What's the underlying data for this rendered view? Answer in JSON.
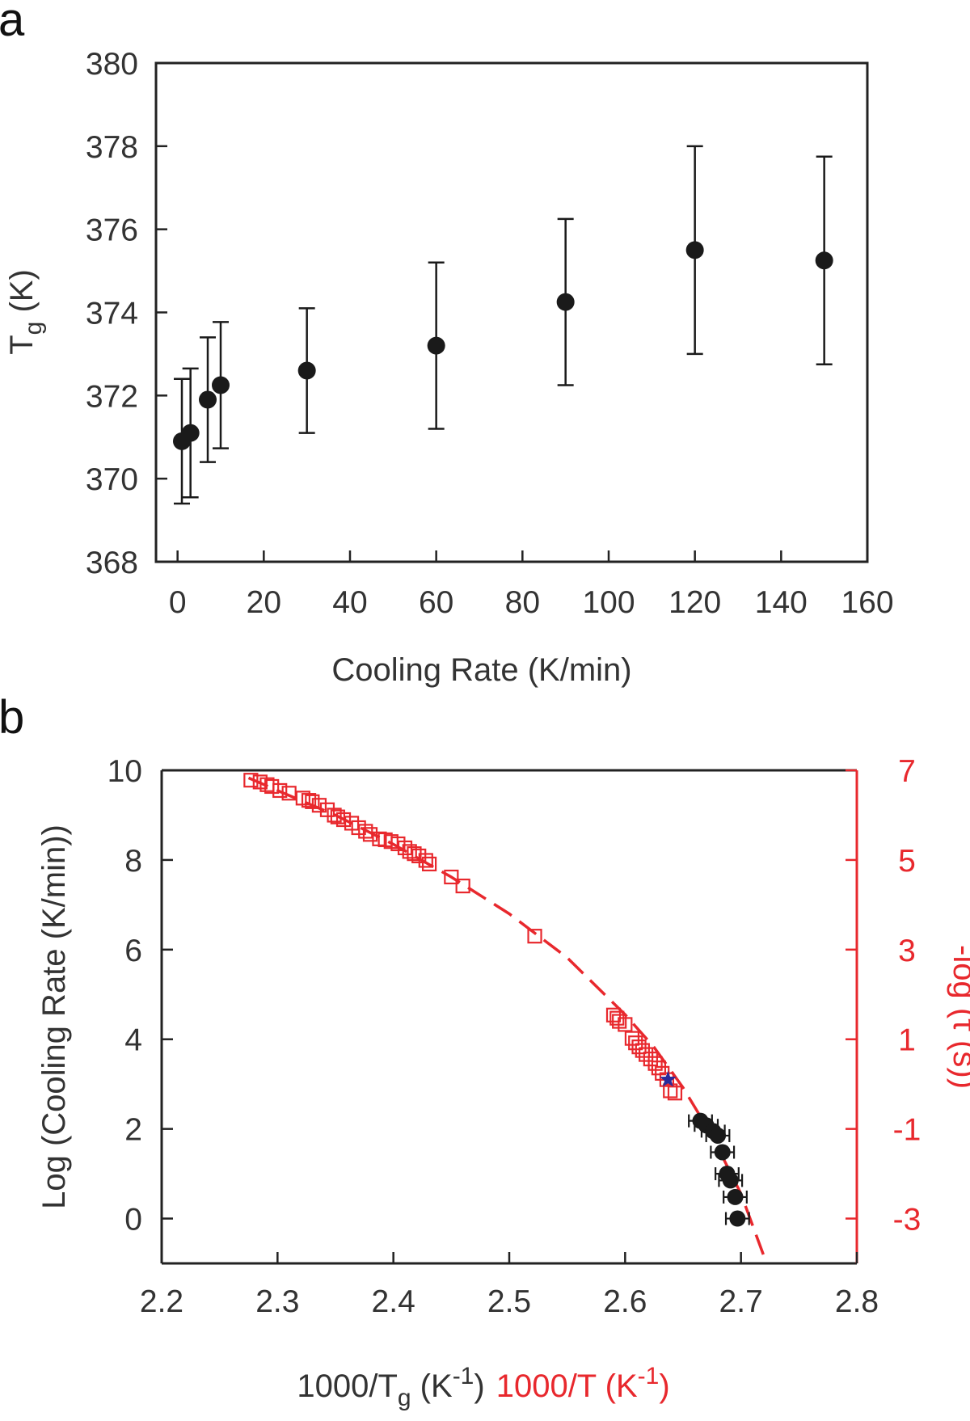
{
  "figure": {
    "panel_letters": [
      "a",
      "b"
    ]
  },
  "chart_data": [
    {
      "panel": "a",
      "type": "scatter",
      "title": "",
      "xlabel": "Cooling Rate (K/min)",
      "ylabel": {
        "main": "T",
        "sub": "g",
        "rest": " (K)"
      },
      "xlim": [
        -5,
        160
      ],
      "ylim": [
        368,
        380
      ],
      "xticks": [
        0,
        20,
        40,
        60,
        80,
        100,
        120,
        140,
        160
      ],
      "yticks": [
        368,
        370,
        372,
        374,
        376,
        378,
        380
      ],
      "grid": false,
      "colors": {
        "marker": "#1a1a1a",
        "axis": "#222222"
      },
      "points": [
        {
          "x": 1,
          "y": 370.9,
          "err": 1.5
        },
        {
          "x": 3,
          "y": 371.1,
          "err": 1.55
        },
        {
          "x": 7,
          "y": 371.9,
          "err": 1.5
        },
        {
          "x": 10,
          "y": 372.25,
          "err": 1.52
        },
        {
          "x": 30,
          "y": 372.6,
          "err": 1.5
        },
        {
          "x": 60,
          "y": 373.2,
          "err": 2.0
        },
        {
          "x": 90,
          "y": 374.25,
          "err": 2.0
        },
        {
          "x": 120,
          "y": 375.5,
          "err": 2.5
        },
        {
          "x": 150,
          "y": 375.25,
          "err": 2.5
        }
      ]
    },
    {
      "panel": "b",
      "type": "scatter",
      "title": "",
      "xlabel": {
        "black_main": "1000/T",
        "black_sub": "g",
        "black_rest": " (K",
        "black_sup": "-1",
        "black_close": ")",
        "red_main": "1000/T (K",
        "red_sup": "-1",
        "red_close": ")"
      },
      "ylabel_left": "Log (Cooling Rate (K/min))",
      "ylabel_right": "-log (τ (s))",
      "xlim": [
        2.2,
        2.8
      ],
      "ylim_left": [
        -1,
        10
      ],
      "ylim_right": [
        -4,
        7
      ],
      "xticks": [
        "2.2",
        "2.3",
        "2.4",
        "2.5",
        "2.6",
        "2.7",
        "2.8"
      ],
      "yticks_left": [
        0,
        2,
        4,
        6,
        8,
        10
      ],
      "yticks_right": [
        -3,
        -1,
        1,
        3,
        5,
        7
      ],
      "grid": false,
      "colors": {
        "red": "#e8282d",
        "black": "#1a1a1a",
        "star": "#2a2a9a"
      },
      "series": [
        {
          "name": "-log tau (red open squares)",
          "axis": "right",
          "x": [
            2.277,
            2.285,
            2.291,
            2.295,
            2.302,
            2.31,
            2.322,
            2.327,
            2.33,
            2.336,
            2.343,
            2.349,
            2.352,
            2.357,
            2.364,
            2.37,
            2.376,
            2.38,
            2.388,
            2.393,
            2.398,
            2.404,
            2.41,
            2.414,
            2.418,
            2.422,
            2.428,
            2.431,
            2.45,
            2.46,
            2.522,
            2.59,
            2.593,
            2.595,
            2.6,
            2.606,
            2.609,
            2.612,
            2.615,
            2.618,
            2.622,
            2.626,
            2.629,
            2.632,
            2.636,
            2.639,
            2.643
          ],
          "y": [
            6.78,
            6.74,
            6.68,
            6.64,
            6.55,
            6.49,
            6.38,
            6.33,
            6.3,
            6.22,
            6.12,
            6.0,
            5.96,
            5.9,
            5.82,
            5.72,
            5.64,
            5.57,
            5.47,
            5.45,
            5.41,
            5.36,
            5.27,
            5.19,
            5.14,
            5.09,
            4.99,
            4.91,
            4.62,
            4.42,
            3.3,
            1.54,
            1.47,
            1.4,
            1.33,
            1.02,
            0.92,
            0.83,
            0.75,
            0.66,
            0.56,
            0.46,
            0.36,
            0.24,
            0.1,
            -0.15,
            -0.2
          ]
        },
        {
          "name": "log cooling rate (black points)",
          "axis": "left",
          "x": [
            2.665,
            2.67,
            2.676,
            2.68,
            2.684,
            2.688,
            2.691,
            2.695,
            2.697
          ],
          "y": [
            2.18,
            2.08,
            1.95,
            1.85,
            1.48,
            1.0,
            0.85,
            0.48,
            0.0
          ],
          "xerr": 0.01
        },
        {
          "name": "star",
          "axis": "left",
          "x": [
            2.637
          ],
          "y": [
            3.1
          ]
        },
        {
          "name": "fit (red dashed curve)",
          "axis": "right",
          "x": [
            2.275,
            2.3,
            2.35,
            2.4,
            2.45,
            2.5,
            2.55,
            2.6,
            2.625,
            2.65,
            2.675,
            2.7,
            2.72
          ],
          "y": [
            6.83,
            6.55,
            6.0,
            5.35,
            4.62,
            3.8,
            2.82,
            1.55,
            0.82,
            -0.08,
            -1.15,
            -2.45,
            -3.85
          ]
        }
      ]
    }
  ]
}
